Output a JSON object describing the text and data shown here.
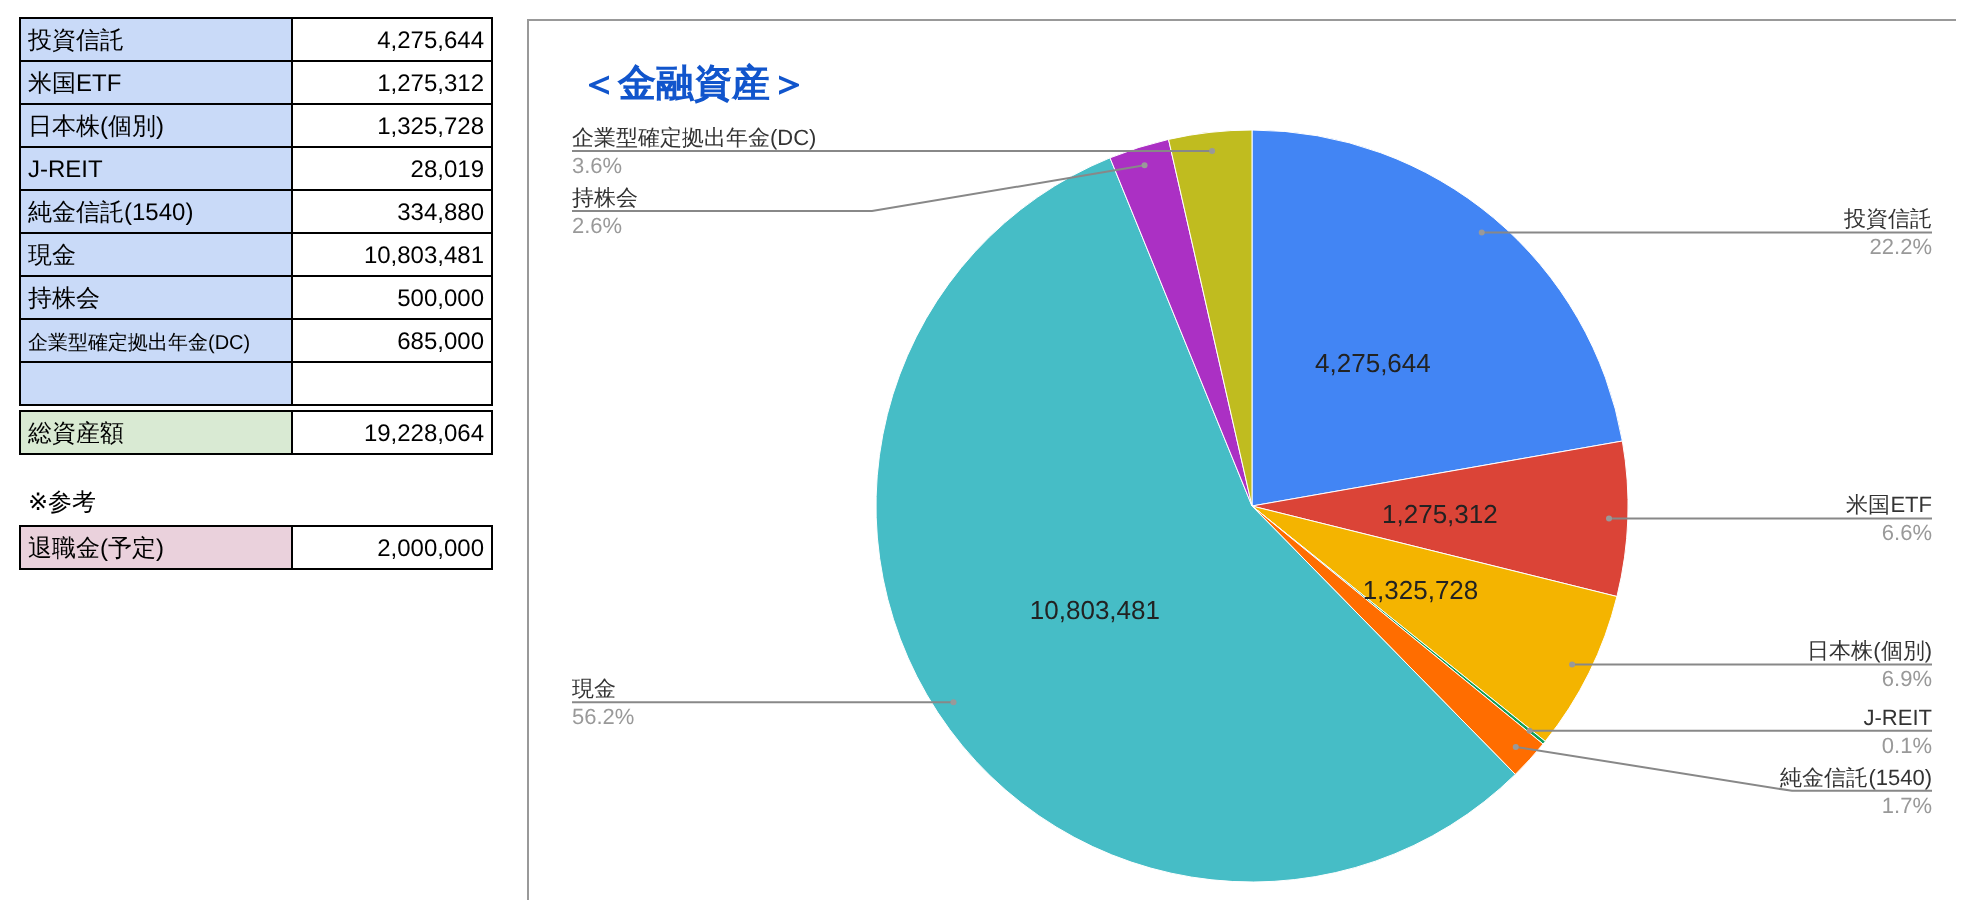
{
  "chart_data": [
    {
      "type": "other",
      "categories": [
        "投資信託",
        "米国ETF",
        "日本株(個別)",
        "J-REIT",
        "純金信託(1540)",
        "現金",
        "持株会",
        "企業型確定拠出年金(DC)",
        null,
        "総資産額",
        "退職金(予定)"
      ],
      "values": [
        4275644,
        1275312,
        1325728,
        28019,
        334880,
        10803481,
        500000,
        685000,
        null,
        19228064,
        2000000
      ],
      "value_labels": [
        "4,275,644",
        "1,275,312",
        "1,325,728",
        "28,019",
        "334,880",
        "10,803,481",
        "500,000",
        "685,000",
        null,
        "19,228,064",
        "2,000,000"
      ],
      "colors": [
        "#c9daf8",
        "#c9daf8",
        "#c9daf8",
        "#c9daf8",
        "#c9daf8",
        "#c9daf8",
        "#c9daf8",
        "#c9daf8",
        "#c9daf8",
        "#d9ead3",
        "#ead1dc"
      ],
      "annotations": [
        "※参考"
      ]
    },
    {
      "type": "pie",
      "title": "＜金融資産＞",
      "categories": [
        "投資信託",
        "米国ETF",
        "日本株(個別)",
        "J-REIT",
        "純金信託(1540)",
        "現金",
        "持株会",
        "企業型確定拠出年金(DC)"
      ],
      "values": [
        4275644,
        1275312,
        1325728,
        28019,
        334880,
        10803481,
        500000,
        685000
      ],
      "value_labels": [
        "4,275,644",
        "1,275,312",
        "1,325,728",
        null,
        null,
        "10,803,481",
        null,
        null
      ],
      "colors": [
        "#4285f4",
        "#db4437",
        "#f4b400",
        "#0f9d58",
        "#ff6d00",
        "#46bdc6",
        "#ab30c4",
        "#c0bc1f"
      ],
      "annotations": [
        "22.2%",
        "6.6%",
        "6.9%",
        "0.1%",
        "1.7%",
        "56.2%",
        "2.6%",
        "3.6%"
      ]
    }
  ]
}
